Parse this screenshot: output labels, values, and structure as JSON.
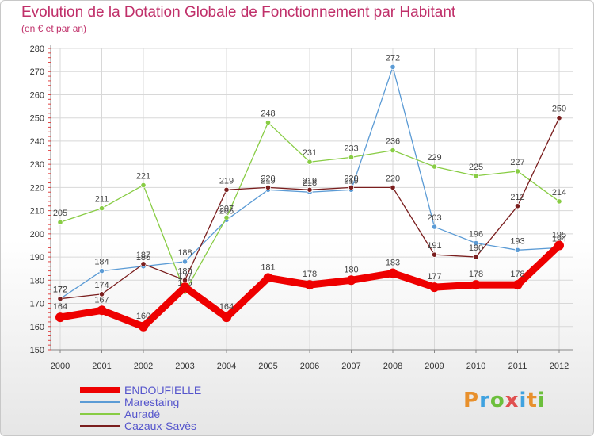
{
  "header": {
    "title": "Evolution de la Dotation Globale de Fonctionnement par Habitant",
    "subtitle": "(en € et par an)"
  },
  "logo": {
    "text": "Proxiti",
    "colors": [
      "#e8902c",
      "#3fa2e0",
      "#6cbf3c",
      "#e05050",
      "#3fa2e0",
      "#e8902c",
      "#6cbf3c"
    ]
  },
  "chart_data": {
    "type": "line",
    "x": [
      "2000",
      "2001",
      "2002",
      "2003",
      "2004",
      "2005",
      "2006",
      "2007",
      "2008",
      "2009",
      "2010",
      "2011",
      "2012"
    ],
    "ylim": [
      150,
      280
    ],
    "yticks": [
      150,
      160,
      170,
      180,
      190,
      200,
      210,
      220,
      230,
      240,
      250,
      260,
      270,
      280
    ],
    "grid": true,
    "legend_position": "bottom-left",
    "series": [
      {
        "name": "ENDOUFIELLE",
        "color": "#ee0000",
        "values": [
          164,
          167,
          160,
          177,
          164,
          181,
          178,
          180,
          183,
          177,
          178,
          178,
          195
        ]
      },
      {
        "name": "Marestaing",
        "color": "#5b9bd5",
        "values": [
          172,
          184,
          186,
          188,
          206,
          219,
          218,
          219,
          272,
          203,
          196,
          193,
          194
        ]
      },
      {
        "name": "Auradé",
        "color": "#88cc44",
        "values": [
          205,
          211,
          221,
          175,
          207,
          248,
          231,
          233,
          236,
          229,
          225,
          227,
          214
        ]
      },
      {
        "name": "Cazaux-Savès",
        "color": "#7a1e1e",
        "values": [
          172,
          174,
          187,
          180,
          219,
          220,
          219,
          220,
          220,
          191,
          190,
          212,
          250
        ]
      }
    ]
  }
}
